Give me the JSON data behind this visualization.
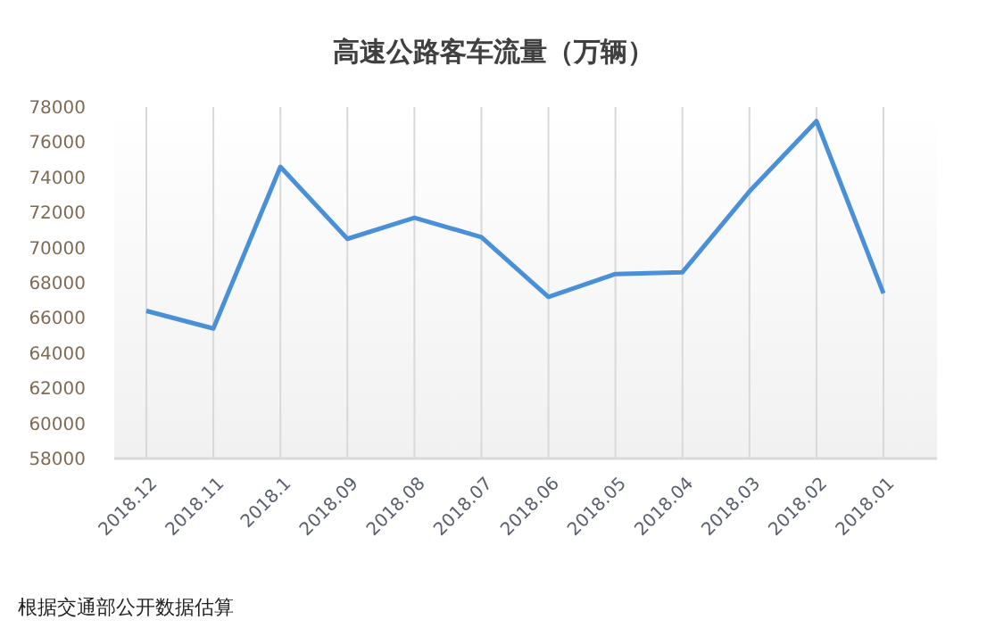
{
  "chart_data": {
    "type": "line",
    "title": "高速公路客车流量（万辆）",
    "categories": [
      "2018.12",
      "2018.11",
      "2018.1",
      "2018.09",
      "2018.08",
      "2018.07",
      "2018.06",
      "2018.05",
      "2018.04",
      "2018.03",
      "2018.02",
      "2018.01"
    ],
    "series": [
      {
        "color": "#4a90d9",
        "values": [
          66400,
          65400,
          74600,
          70500,
          71700,
          70600,
          67200,
          68500,
          68600,
          73200,
          77200,
          67400
        ]
      }
    ],
    "ylim": [
      58000,
      78000
    ],
    "yticks": [
      58000,
      60000,
      62000,
      64000,
      66000,
      68000,
      70000,
      72000,
      74000,
      76000,
      78000
    ],
    "grid": "x",
    "marker": "none",
    "line_style": "solid",
    "annotations": [
      "根据交通部公开数据估算"
    ]
  }
}
